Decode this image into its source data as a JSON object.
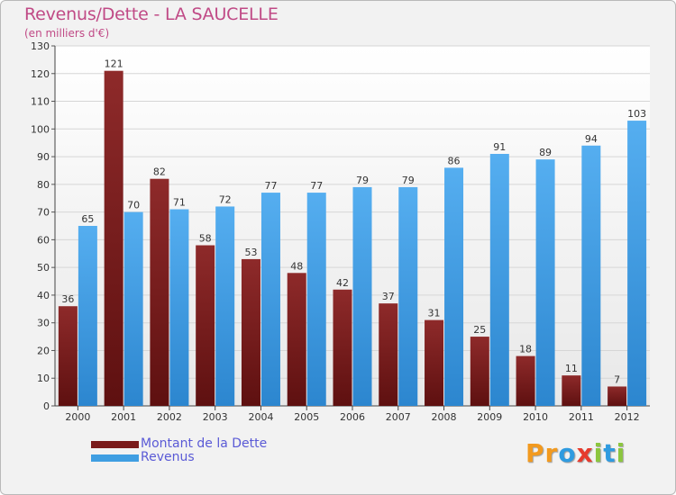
{
  "title": "Revenus/Dette - LA SAUCELLE",
  "subtitle": "(en milliers d'€)",
  "colors": {
    "title": "#c04a86",
    "dette": "#7a1a1a",
    "revenus": "#3f9ee2",
    "legend_text": "#5a5ad6",
    "background": "#f2f2f2"
  },
  "logo": {
    "text": "Proxiti",
    "letters": [
      {
        "ch": "P",
        "color": "#f29a1f"
      },
      {
        "ch": "r",
        "color": "#f29a1f"
      },
      {
        "ch": "o",
        "color": "#2f9be0"
      },
      {
        "ch": "x",
        "color": "#e63b2e"
      },
      {
        "ch": "i",
        "color": "#8cc63f"
      },
      {
        "ch": "t",
        "color": "#2f9be0"
      },
      {
        "ch": "i",
        "color": "#8cc63f"
      }
    ]
  },
  "chart_data": {
    "type": "bar",
    "title": "Revenus/Dette - LA SAUCELLE",
    "subtitle": "(en milliers d'€)",
    "categories": [
      "2000",
      "2001",
      "2002",
      "2003",
      "2004",
      "2005",
      "2006",
      "2007",
      "2008",
      "2009",
      "2010",
      "2011",
      "2012"
    ],
    "series": [
      {
        "name": "Montant de la Dette",
        "color": "#7a1a1a",
        "values": [
          36,
          121,
          82,
          58,
          53,
          48,
          42,
          37,
          31,
          25,
          18,
          11,
          7
        ]
      },
      {
        "name": "Revenus",
        "color": "#3f9ee2",
        "values": [
          65,
          70,
          71,
          72,
          77,
          77,
          79,
          79,
          86,
          91,
          89,
          94,
          103
        ]
      }
    ],
    "ylim": [
      0,
      130
    ],
    "yticks": [
      0,
      10,
      20,
      30,
      40,
      50,
      60,
      70,
      80,
      90,
      100,
      110,
      120,
      130
    ],
    "grid": true,
    "legend_position": "bottom-left",
    "xlabel": "",
    "ylabel": ""
  }
}
